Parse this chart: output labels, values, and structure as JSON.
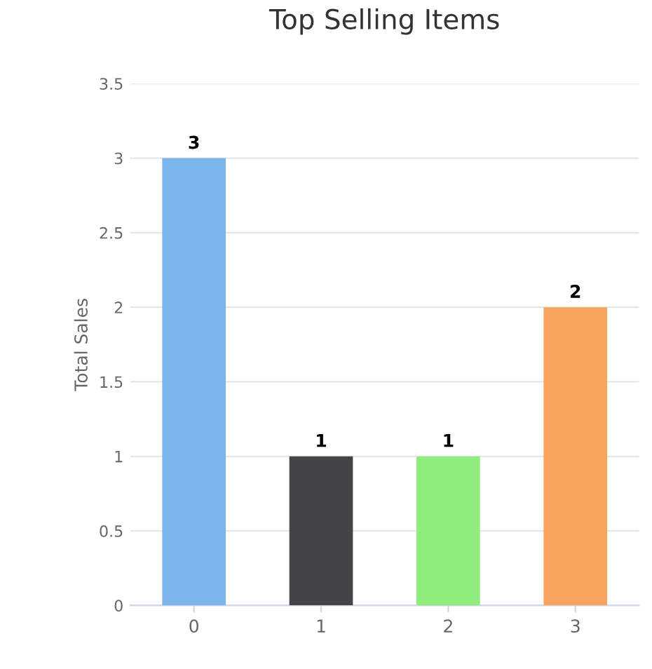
{
  "chart_data": {
    "type": "bar",
    "title": "Top Selling Items",
    "ylabel": "Total Sales",
    "categories": [
      "0",
      "1",
      "2",
      "3"
    ],
    "values": [
      3,
      1,
      1,
      2
    ],
    "colors": [
      "#7cb5ec",
      "#434348",
      "#90ed7d",
      "#f7a35c"
    ],
    "ylim": [
      0,
      3.5
    ],
    "yticks": [
      0,
      0.5,
      1,
      1.5,
      2,
      2.5,
      3,
      3.5
    ],
    "grid": "y",
    "data_labels": true
  }
}
